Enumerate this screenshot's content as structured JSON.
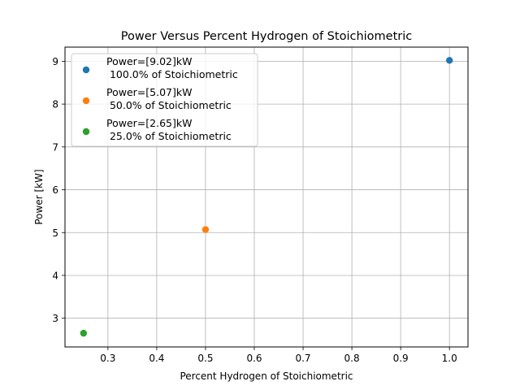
{
  "chart_data": {
    "type": "scatter",
    "title": "Power Versus Percent Hydrogen of Stoichiometric",
    "xlabel": "Percent Hydrogen of Stoichiometric",
    "ylabel": "Power [kW]",
    "xlim": [
      0.212,
      1.038
    ],
    "ylim": [
      2.33,
      9.33
    ],
    "xticks": [
      0.3,
      0.4,
      0.5,
      0.6,
      0.7,
      0.8,
      0.9,
      1.0
    ],
    "xtick_labels": [
      "0.3",
      "0.4",
      "0.5",
      "0.6",
      "0.7",
      "0.8",
      "0.9",
      "1.0"
    ],
    "yticks": [
      3,
      4,
      5,
      6,
      7,
      8,
      9
    ],
    "ytick_labels": [
      "3",
      "4",
      "5",
      "6",
      "7",
      "8",
      "9"
    ],
    "grid": true,
    "legend_position": "top-left",
    "series": [
      {
        "name": "Power=[9.02]kW\n 100.0% of Stoichiometric",
        "color": "#1f77b4",
        "points": [
          {
            "x": 1.0,
            "y": 9.02
          }
        ]
      },
      {
        "name": "Power=[5.07]kW\n 50.0% of Stoichiometric",
        "color": "#ff7f0e",
        "points": [
          {
            "x": 0.5,
            "y": 5.07
          }
        ]
      },
      {
        "name": "Power=[2.65]kW\n 25.0% of Stoichiometric",
        "color": "#2ca02c",
        "points": [
          {
            "x": 0.25,
            "y": 2.65
          }
        ]
      }
    ]
  }
}
